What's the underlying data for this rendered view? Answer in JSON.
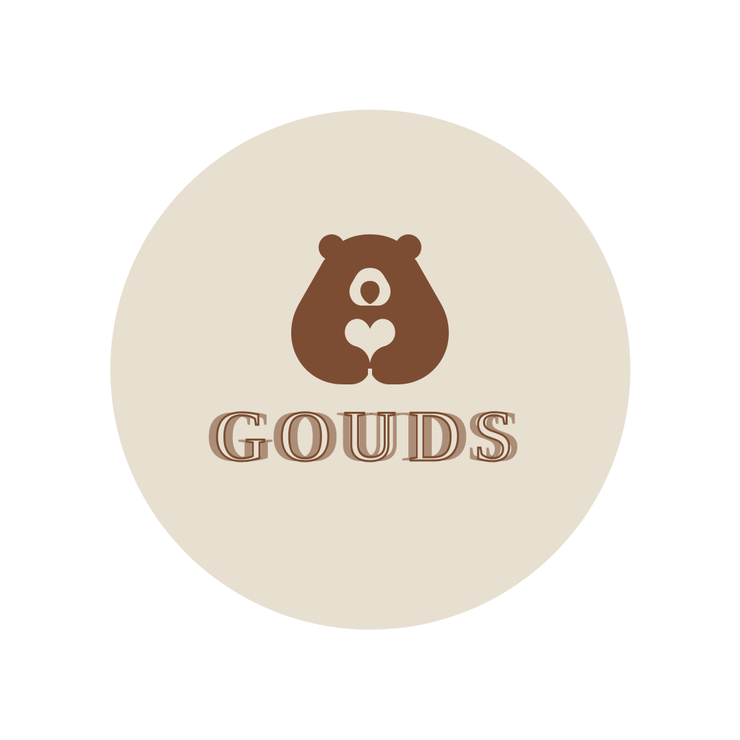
{
  "logo": {
    "brand_name": "GOUDS",
    "mark": "bear-holding-heart-icon"
  },
  "colors": {
    "background": "#ffffff",
    "badge": "#e7dfd0",
    "brand": "#7c4d32"
  }
}
